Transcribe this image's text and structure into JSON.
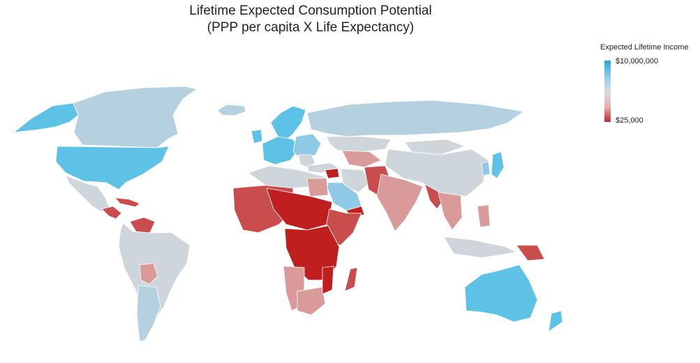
{
  "title": "Lifetime Expected Consumption Potential",
  "subtitle": "(PPP per capita X Life Expectancy)",
  "legend": {
    "title": "Expected Lifetime Income",
    "max_label": "$10,000,000",
    "min_label": "$25,000",
    "gradient_colors": [
      "#1ea6de",
      "#8fcbe6",
      "#d7dde2",
      "#e6b0b0",
      "#c02a2a"
    ]
  },
  "palette": {
    "high": "#5ec1e6",
    "upper": "#8fcbe6",
    "mid": "#b5d1df",
    "neutral": "#cfd6db",
    "lowmid": "#d99a9a",
    "low": "#c94d4d",
    "lowest": "#bf1f1f"
  }
}
